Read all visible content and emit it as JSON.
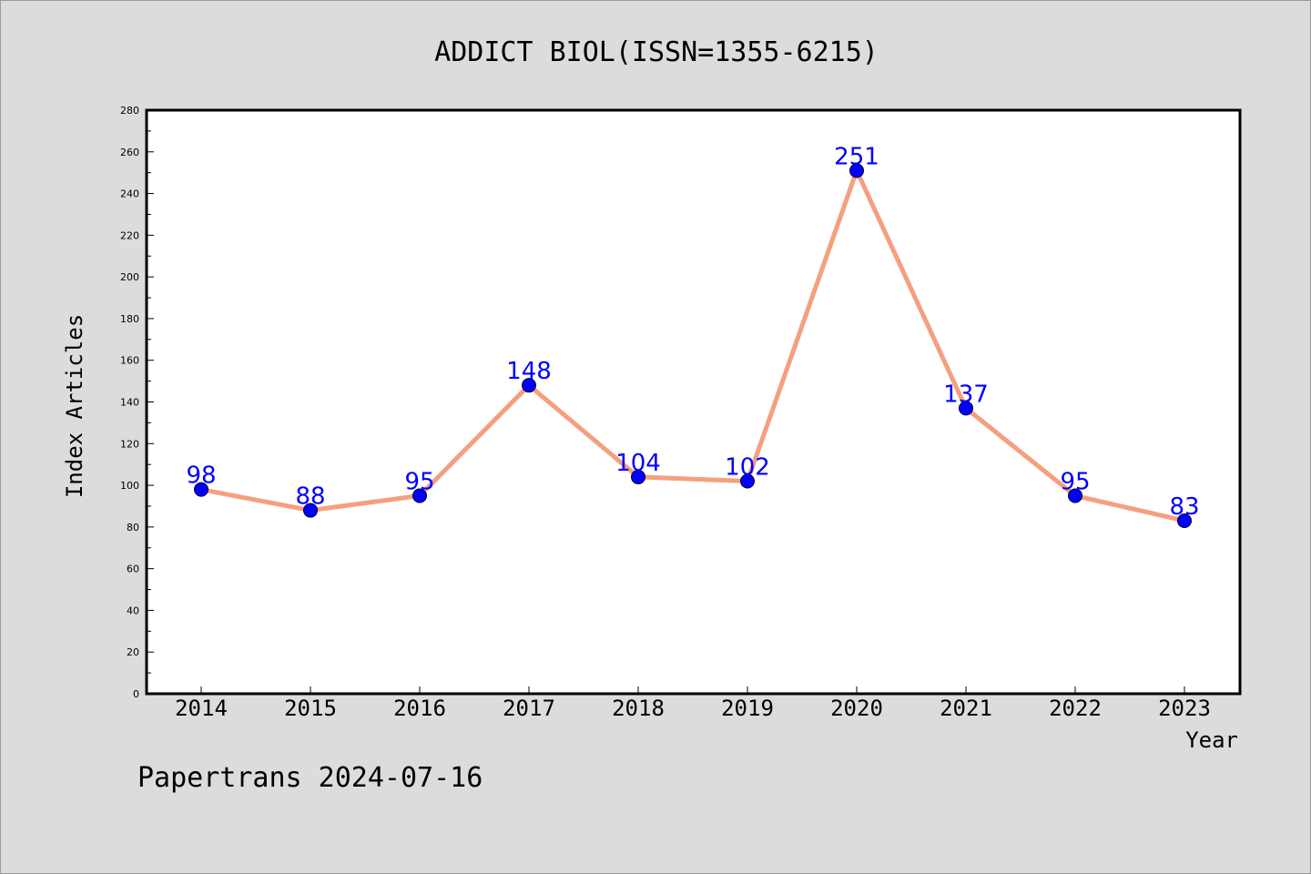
{
  "footer": "Papertrans 2024-07-16",
  "colors": {
    "line": "#f4a07f",
    "marker": "#0000ff",
    "data_label": "#0000ff",
    "plot_background": "#ffffff",
    "page_background": "#dcdcdc"
  },
  "chart_data": {
    "type": "line",
    "title": "ADDICT BIOL(ISSN=1355-6215)",
    "xlabel": "Year",
    "ylabel": "Index Articles",
    "categories": [
      "2014",
      "2015",
      "2016",
      "2017",
      "2018",
      "2019",
      "2020",
      "2021",
      "2022",
      "2023"
    ],
    "series": [
      {
        "values": [
          98,
          88,
          95,
          148,
          104,
          102,
          251,
          137,
          95,
          83
        ]
      }
    ],
    "ylim": [
      0,
      280
    ],
    "yticks": [
      0,
      20,
      40,
      60,
      80,
      100,
      120,
      140,
      160,
      180,
      200,
      220,
      240,
      260,
      280
    ],
    "grid": false,
    "data_labels": true
  }
}
